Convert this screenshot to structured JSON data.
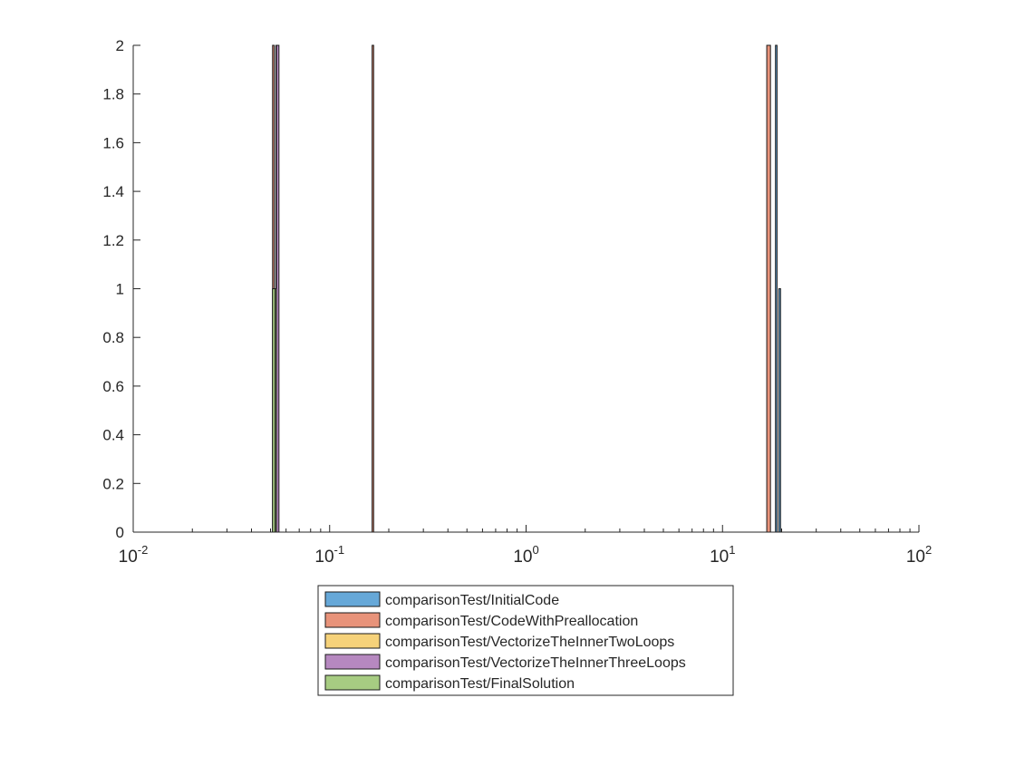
{
  "chart_data": {
    "type": "histogram",
    "title": "",
    "xlabel": "",
    "ylabel": "",
    "xscale": "log",
    "xlim": [
      0.01,
      100
    ],
    "ylim": [
      0,
      2
    ],
    "x_ticks": [
      {
        "base": "10",
        "exp": "-2"
      },
      {
        "base": "10",
        "exp": "-1"
      },
      {
        "base": "10",
        "exp": "0"
      },
      {
        "base": "10",
        "exp": "1"
      },
      {
        "base": "10",
        "exp": "2"
      }
    ],
    "y_ticks": [
      "0",
      "0.2",
      "0.4",
      "0.6",
      "0.8",
      "1",
      "1.2",
      "1.4",
      "1.6",
      "1.8",
      "2"
    ],
    "grid": false,
    "legend_position": "bottom-outside",
    "series": [
      {
        "name": "comparisonTest/InitialCode",
        "color": "#66a8d8",
        "bins": [
          {
            "x0": 18.6,
            "x1": 18.95,
            "count": 2
          },
          {
            "x0": 19.35,
            "x1": 19.75,
            "count": 1
          }
        ]
      },
      {
        "name": "comparisonTest/CodeWithPreallocation",
        "color": "#e8937a",
        "bins": [
          {
            "x0": 16.8,
            "x1": 17.55,
            "count": 2
          },
          {
            "x0": 0.1645,
            "x1": 0.1675,
            "count": 2
          },
          {
            "x0": 0.0512,
            "x1": 0.0522,
            "count": 2
          }
        ]
      },
      {
        "name": "comparisonTest/VectorizeTheInnerTwoLoops",
        "color": "#f6d27a",
        "bins": [
          {
            "x0": 0.0532,
            "x1": 0.0548,
            "count": 2
          }
        ]
      },
      {
        "name": "comparisonTest/VectorizeTheInnerThreeLoops",
        "color": "#b688c0",
        "bins": [
          {
            "x0": 0.0536,
            "x1": 0.0552,
            "count": 2
          }
        ]
      },
      {
        "name": "comparisonTest/FinalSolution",
        "color": "#a7cc82",
        "bins": [
          {
            "x0": 0.0512,
            "x1": 0.0528,
            "count": 1
          },
          {
            "x0": 0.0528,
            "x1": 0.0536,
            "count": 1
          }
        ]
      }
    ]
  }
}
